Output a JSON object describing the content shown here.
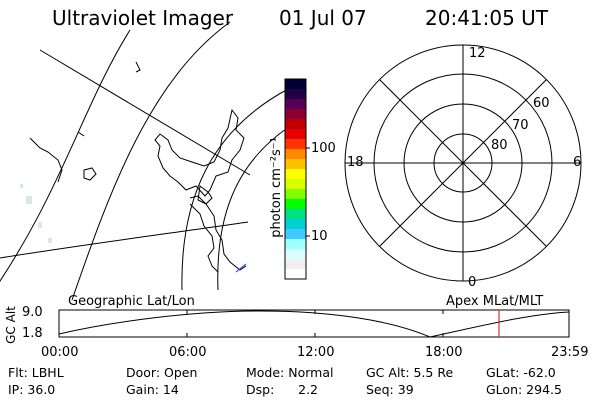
{
  "header": {
    "title": "Ultraviolet Imager",
    "date": "01 Jul 07",
    "time": "20:41:05 UT"
  },
  "colorbar": {
    "unit_label": "photon cm⁻²s⁻¹",
    "ticks": [
      "100",
      "10"
    ],
    "colors": [
      "#000033",
      "#220044",
      "#550055",
      "#8a0033",
      "#c00000",
      "#e80000",
      "#ff3300",
      "#ff8a00",
      "#ffc000",
      "#ffff00",
      "#d8ff00",
      "#80ff00",
      "#00ff00",
      "#00e080",
      "#00d0d0",
      "#40c8ff",
      "#a0ffff",
      "#d8ffff",
      "#f0f0f0",
      "#ffffff"
    ]
  },
  "polar_plot": {
    "lat_labels": [
      "80",
      "70",
      "60"
    ],
    "mlt_labels": {
      "top": "12",
      "bottom": "0",
      "left": "18",
      "right": "6"
    }
  },
  "altitude_panel": {
    "left_title": "Geographic Lat/Lon",
    "right_title": "Apex MLat/MLT",
    "y_axis_label": "GC Alt",
    "y_ticks": [
      "9.0",
      "1.8"
    ],
    "x_ticks": [
      "00:00",
      "06:00",
      "12:00",
      "18:00",
      "23:59"
    ],
    "marker_color": "#cc3333",
    "marker_time": "20:41"
  },
  "info": {
    "row1": [
      "Flt: LBHL",
      "Door: Open",
      "Mode: Normal",
      "GC Alt: 5.5 Re",
      "GLat: -62.0"
    ],
    "row2": [
      "IP: 36.0",
      "Gain: 14",
      "Dsp:      2.2",
      "Seq: 39",
      "GLon: 294.5"
    ]
  }
}
